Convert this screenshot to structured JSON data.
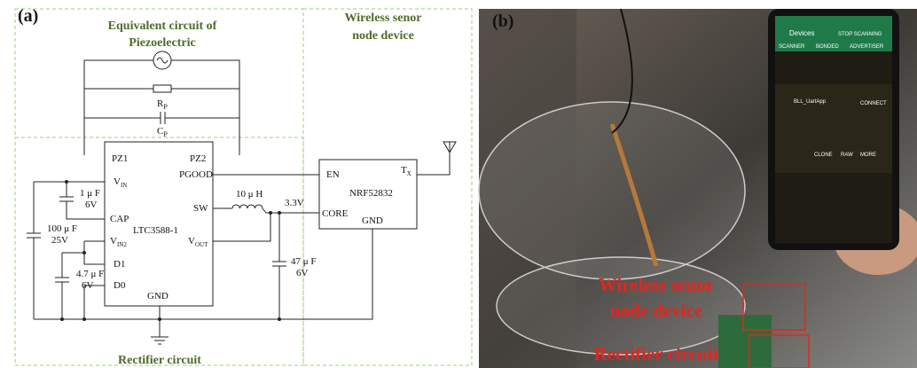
{
  "panel_a": {
    "label": "(a)",
    "piezo_title": [
      "Equivalent circuit of",
      "Piezoelectric"
    ],
    "node_title": [
      "Wireless senor",
      "node device"
    ],
    "rectifier_title": "Rectifier circuit",
    "rp": {
      "main": "R",
      "sub": "P"
    },
    "cp": {
      "main": "C",
      "sub": "P"
    },
    "ltc": {
      "name": "LTC3588-1",
      "pz1": "PZ1",
      "pz2": "PZ2",
      "vin": {
        "main": "V",
        "sub": "IN"
      },
      "pgood": "PGOOD",
      "cap": "CAP",
      "sw": "SW",
      "vin2": {
        "main": "V",
        "sub": "IN2"
      },
      "vout": {
        "main": "V",
        "sub": "OUT"
      },
      "d1": "D1",
      "d0": "D0",
      "gnd": "GND"
    },
    "nrf": {
      "name": "NRF52832",
      "en": "EN",
      "tx": {
        "main": "T",
        "sub": "X"
      },
      "core": "CORE",
      "gnd": "GND"
    },
    "c1": [
      "1 μ F",
      "6V"
    ],
    "c100": [
      "100 μ F",
      "25V"
    ],
    "c4_7": [
      "4.7 μ F",
      "6V"
    ],
    "c47": [
      "47 μ F",
      "6V"
    ],
    "inductor": "10 μ H",
    "rail": "3.3V"
  },
  "panel_b": {
    "label": "(b)",
    "phone": {
      "header": "Devices",
      "stop": "STOP SCANNING",
      "tabs": [
        "SCANNER",
        "BONDED",
        "ADVERTISER"
      ],
      "device": "BLL_UartApp",
      "connect": "CONNECT",
      "actions": [
        "CLONE",
        "RAW",
        "MORE"
      ]
    },
    "node_label": [
      "Wireless senor",
      "node device"
    ],
    "rectifier_label": "Rectifier circuit"
  }
}
